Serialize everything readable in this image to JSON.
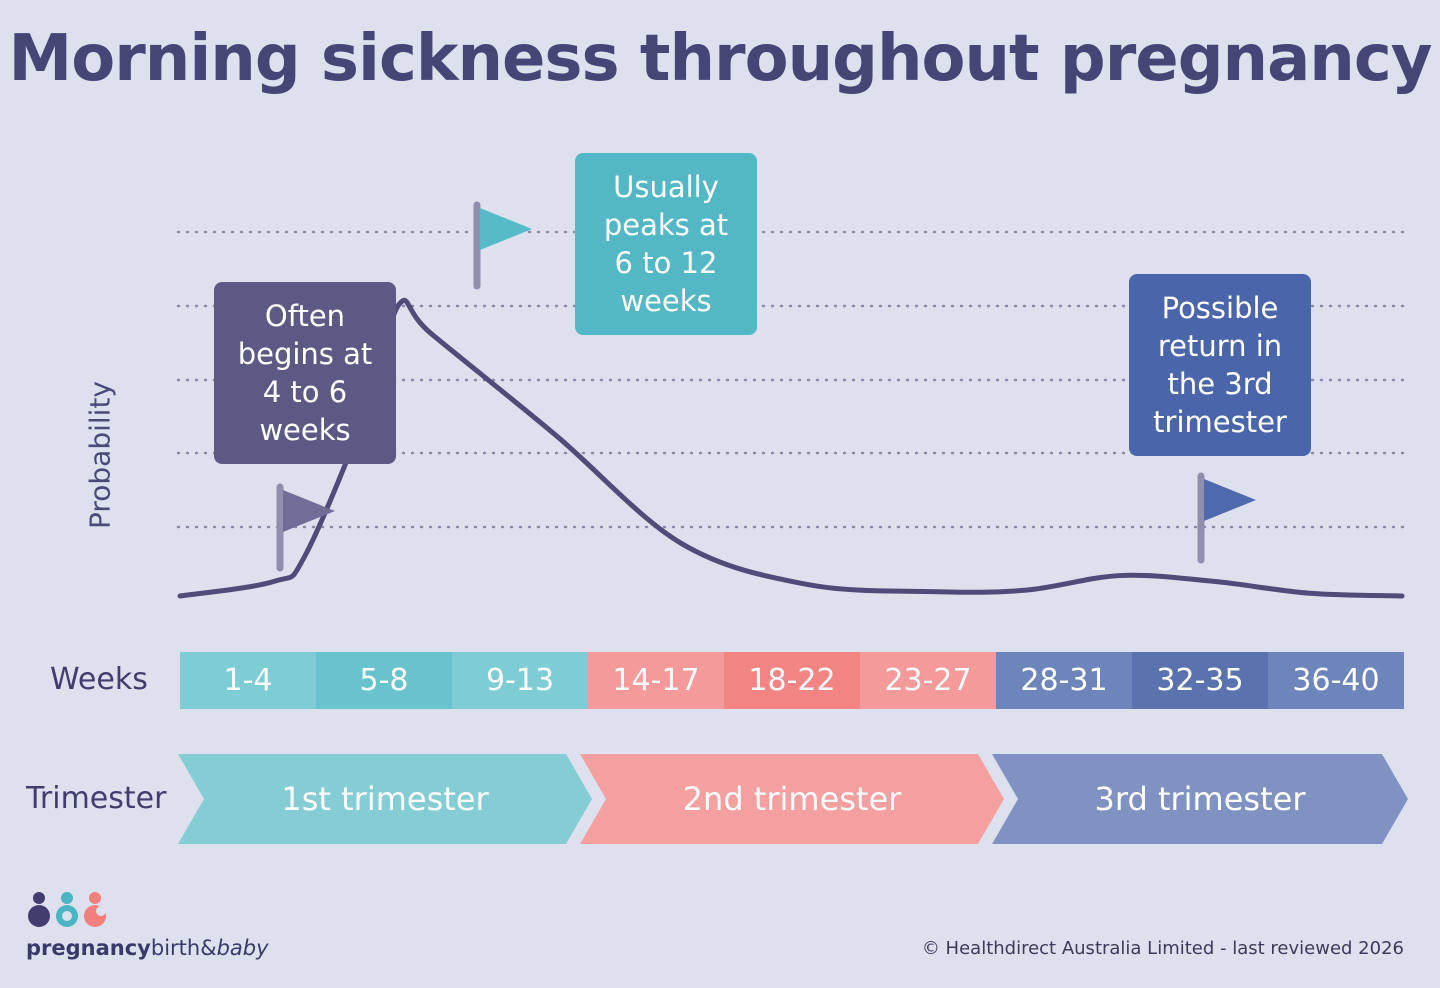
{
  "title": "Morning sickness throughout pregnancy",
  "chart_data": {
    "type": "line",
    "ylabel": "Probability",
    "xlabel": "Weeks",
    "x": [
      1,
      4,
      5,
      7,
      8,
      9,
      13,
      17,
      21,
      25,
      28,
      31,
      34,
      37,
      40
    ],
    "y": [
      0.0,
      0.05,
      0.14,
      0.65,
      1.0,
      0.9,
      0.55,
      0.18,
      0.04,
      0.015,
      0.02,
      0.07,
      0.05,
      0.01,
      0.0
    ],
    "annotations": [
      {
        "text": "Often\nbegins at\n4 to 6\nweeks",
        "color": "#5b5a84",
        "flag_color": "#706e96"
      },
      {
        "text": "Usually\npeaks at\n6 to 12\nweeks",
        "color": "#53b7c6",
        "flag_color": "#57bac8"
      },
      {
        "text": "Possible\nreturn in\nthe 3rd\ntrimester",
        "color": "#4a65a9",
        "flag_color": "#4f69ad"
      }
    ],
    "grid": "dotted horizontal",
    "line_color": "#4e4d7a"
  },
  "weeks_label": "Weeks",
  "weeks": [
    {
      "label": "1-4",
      "color": "#7ecdd4"
    },
    {
      "label": "5-8",
      "color": "#69c3cc"
    },
    {
      "label": "9-13",
      "color": "#7ecdd4"
    },
    {
      "label": "14-17",
      "color": "#f49a9a"
    },
    {
      "label": "18-22",
      "color": "#f28584"
    },
    {
      "label": "23-27",
      "color": "#f49a9a"
    },
    {
      "label": "28-31",
      "color": "#6e85bb"
    },
    {
      "label": "32-35",
      "color": "#5a72ae"
    },
    {
      "label": "36-40",
      "color": "#6e85bb"
    }
  ],
  "trimester_label": "Trimester",
  "trimesters": [
    {
      "label": "1st trimester",
      "color": "#86ccd4"
    },
    {
      "label": "2nd trimester",
      "color": "#f4a0a1"
    },
    {
      "label": "3rd trimester",
      "color": "#7f92c2"
    }
  ],
  "brand": {
    "part1": "pregnancy",
    "part2": "birth&",
    "part3": "baby"
  },
  "copyright": "© Healthdirect Australia Limited - last reviewed 2026"
}
